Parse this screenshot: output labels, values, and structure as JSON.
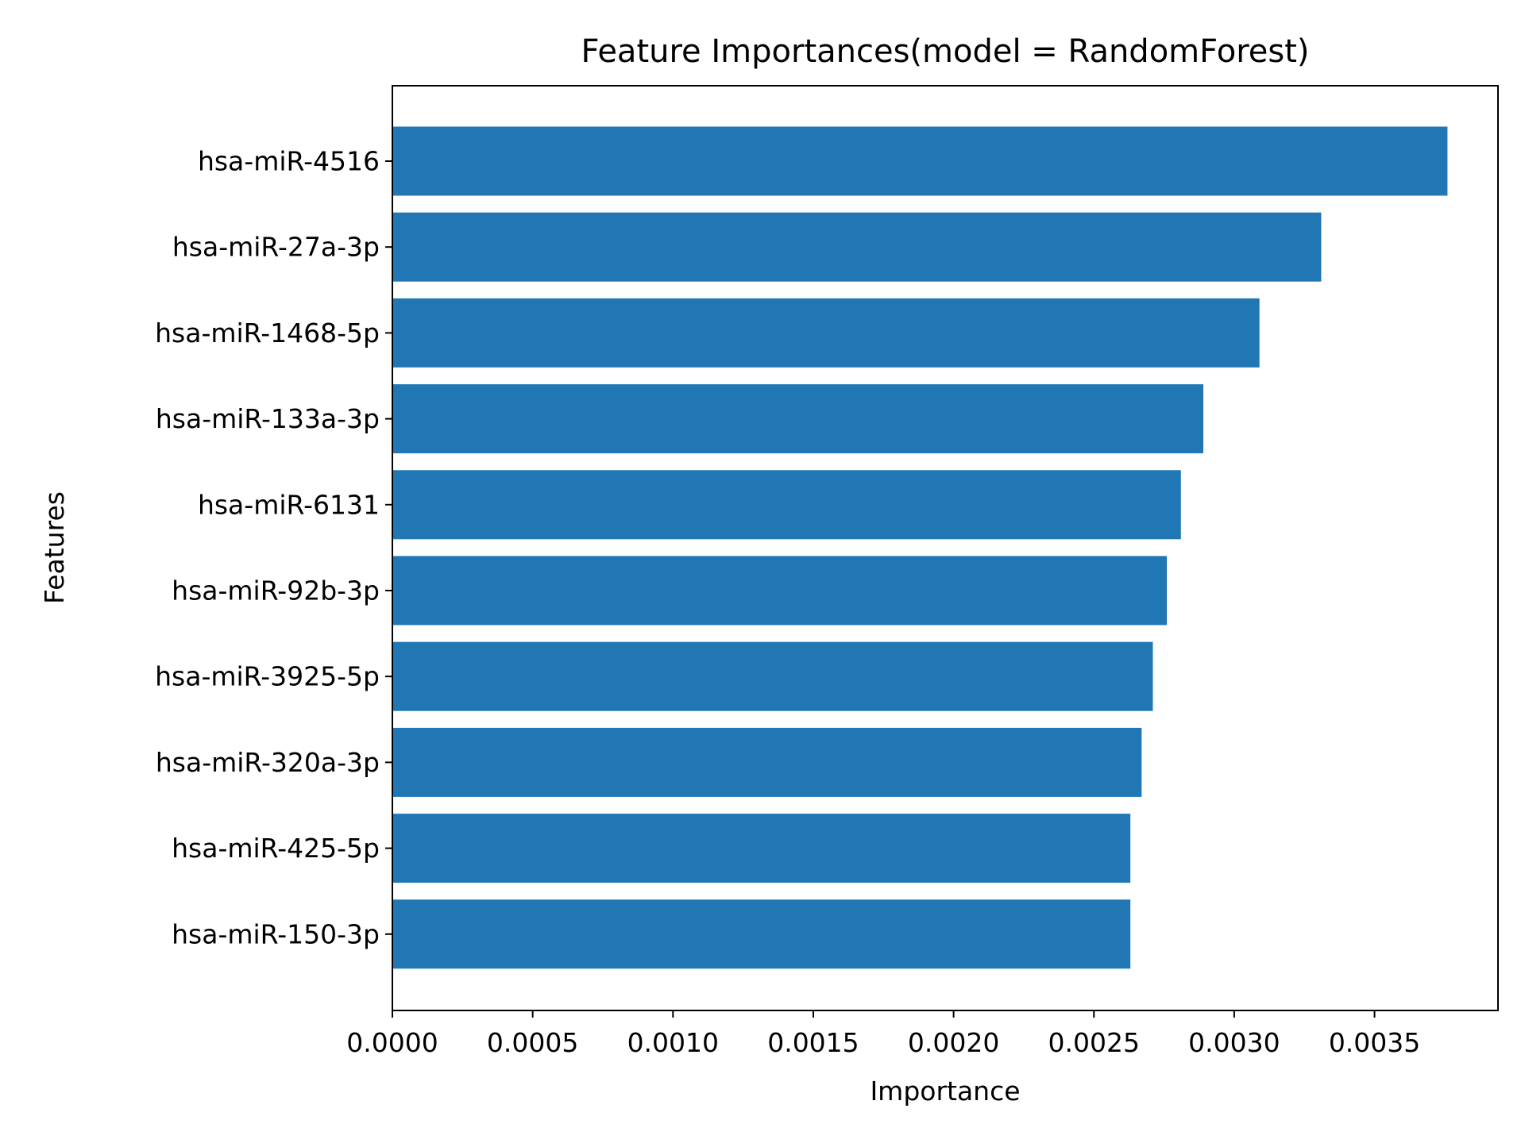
{
  "chart_data": {
    "type": "bar",
    "orientation": "horizontal",
    "title": "Feature Importances(model = RandomForest)",
    "xlabel": "Importance",
    "ylabel": "Features",
    "categories": [
      "hsa-miR-4516",
      "hsa-miR-27a-3p",
      "hsa-miR-1468-5p",
      "hsa-miR-133a-3p",
      "hsa-miR-6131",
      "hsa-miR-92b-3p",
      "hsa-miR-3925-5p",
      "hsa-miR-320a-3p",
      "hsa-miR-425-5p",
      "hsa-miR-150-3p"
    ],
    "values": [
      0.00376,
      0.00331,
      0.00309,
      0.00289,
      0.00281,
      0.00276,
      0.00271,
      0.00267,
      0.00263,
      0.00263
    ],
    "xlim": [
      0,
      0.00394
    ],
    "xticks": [
      "0.0000",
      "0.0005",
      "0.0010",
      "0.0015",
      "0.0020",
      "0.0025",
      "0.0030",
      "0.0035"
    ],
    "grid": false,
    "legend": "none",
    "bar_color": "#2077b4",
    "axis_color": "#000000"
  }
}
